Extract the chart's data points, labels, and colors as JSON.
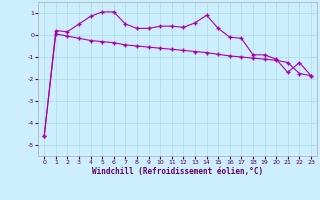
{
  "xlabel": "Windchill (Refroidissement éolien,°C)",
  "bg_color": "#cceeff",
  "grid_color": "#aadddd",
  "line_color": "#aa00aa",
  "xlim": [
    -0.5,
    23.5
  ],
  "ylim": [
    -5.5,
    1.5
  ],
  "yticks": [
    -5,
    -4,
    -3,
    -2,
    -1,
    0,
    1
  ],
  "xticks": [
    0,
    1,
    2,
    3,
    4,
    5,
    6,
    7,
    8,
    9,
    10,
    11,
    12,
    13,
    14,
    15,
    16,
    17,
    18,
    19,
    20,
    21,
    22,
    23
  ],
  "line1_x": [
    0,
    1,
    2,
    3,
    4,
    5,
    6,
    7,
    8,
    9,
    10,
    11,
    12,
    13,
    14,
    15,
    16,
    17,
    18,
    19,
    20,
    21,
    22,
    23
  ],
  "line1_y": [
    -4.6,
    0.2,
    0.15,
    0.5,
    0.85,
    1.05,
    1.05,
    0.5,
    0.3,
    0.3,
    0.4,
    0.4,
    0.35,
    0.55,
    0.9,
    0.3,
    -0.1,
    -0.15,
    -0.9,
    -0.9,
    -1.1,
    -1.7,
    -1.25,
    -1.85
  ],
  "line2_x": [
    0,
    1,
    2,
    3,
    4,
    5,
    6,
    7,
    8,
    9,
    10,
    11,
    12,
    13,
    14,
    15,
    16,
    17,
    18,
    19,
    20,
    21,
    22,
    23
  ],
  "line2_y": [
    -4.6,
    0.05,
    -0.05,
    -0.15,
    -0.25,
    -0.3,
    -0.35,
    -0.45,
    -0.5,
    -0.55,
    -0.6,
    -0.65,
    -0.7,
    -0.75,
    -0.8,
    -0.88,
    -0.95,
    -1.0,
    -1.05,
    -1.1,
    -1.15,
    -1.25,
    -1.75,
    -1.85
  ]
}
